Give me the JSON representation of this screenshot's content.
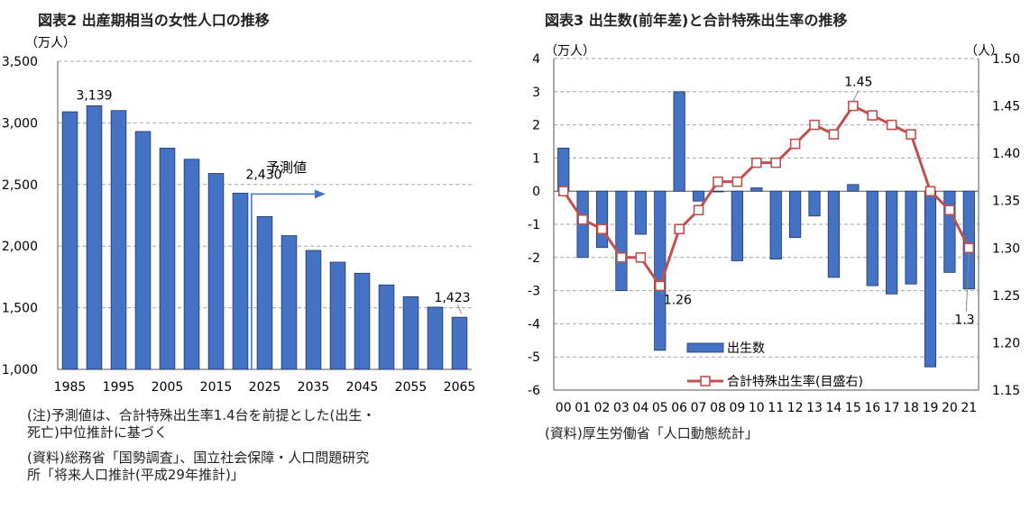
{
  "chart_data": [
    {
      "type": "bar",
      "title": "図表2 出産期相当の女性人口の推移",
      "ylabel": "（万人）",
      "ylim": [
        1000,
        3500
      ],
      "yticks": [
        "1,000",
        "1,500",
        "2,000",
        "2,500",
        "3,000",
        "3,500"
      ],
      "x_tick_labels": [
        "1985",
        "1995",
        "2005",
        "2015",
        "2025",
        "2035",
        "2045",
        "2055",
        "2065"
      ],
      "categories": [
        "1985",
        "1990",
        "1995",
        "2000",
        "2005",
        "2010",
        "2015",
        "2020",
        "2025",
        "2030",
        "2035",
        "2040",
        "2045",
        "2050",
        "2055",
        "2060",
        "2065"
      ],
      "values": [
        3090,
        3139,
        3100,
        2930,
        2795,
        2705,
        2590,
        2430,
        2240,
        2085,
        1965,
        1870,
        1780,
        1685,
        1590,
        1505,
        1423
      ],
      "data_labels": [
        {
          "index": 1,
          "text": "3,139"
        },
        {
          "index": 7,
          "text": "2,430"
        },
        {
          "index": 16,
          "text": "1,423"
        }
      ],
      "annotation": "予測値",
      "grid": true,
      "notes": [
        "(注)予測値は、合計特殊出生率1.4台を前提とした(出生・",
        "死亡)中位推計に基づく",
        "(資料)総務省「国勢調査」、国立社会保障・人口問題研究",
        "所「将来人口推計(平成29年推計)」"
      ]
    },
    {
      "type": "bar+line",
      "title": "図表3 出生数(前年差)と合計特殊出生率の推移",
      "ylabel_left": "（万人）",
      "ylabel_right": "（人）",
      "ylim_left": [
        -6,
        4
      ],
      "yticks_left": [
        "4",
        "3",
        "2",
        "1",
        "0",
        "-1",
        "-2",
        "-3",
        "-4",
        "-5",
        "-6"
      ],
      "ylim_right": [
        1.15,
        1.5
      ],
      "yticks_right": [
        "1.50",
        "1.45",
        "1.40",
        "1.35",
        "1.30",
        "1.25",
        "1.20",
        "1.15"
      ],
      "categories": [
        "00",
        "01",
        "02",
        "03",
        "04",
        "05",
        "06",
        "07",
        "08",
        "09",
        "10",
        "11",
        "12",
        "13",
        "14",
        "15",
        "16",
        "17",
        "18",
        "19",
        "20",
        "21"
      ],
      "series": [
        {
          "name": "出生数",
          "axis": "left",
          "values": [
            1.3,
            -2.0,
            -1.7,
            -3.0,
            -1.3,
            -4.8,
            3.0,
            -0.3,
            0.0,
            -2.1,
            0.1,
            -2.05,
            -1.4,
            -0.75,
            -2.6,
            0.2,
            -2.85,
            -3.1,
            -2.8,
            -5.3,
            -2.45,
            -2.95
          ]
        },
        {
          "name": "合計特殊出生率(目盛右)",
          "axis": "right",
          "values": [
            1.36,
            1.33,
            1.32,
            1.29,
            1.29,
            1.26,
            1.32,
            1.34,
            1.37,
            1.37,
            1.39,
            1.39,
            1.41,
            1.43,
            1.42,
            1.45,
            1.44,
            1.43,
            1.42,
            1.36,
            1.34,
            1.3
          ]
        }
      ],
      "data_labels": [
        {
          "index": 5,
          "text": "1.26"
        },
        {
          "index": 15,
          "text": "1.45"
        },
        {
          "index": 21,
          "text": "1.3"
        }
      ],
      "legend": [
        "出生数",
        "合計特殊出生率(目盛右)"
      ],
      "grid": true,
      "notes": [
        "(資料)厚生労働省「人口動態統計」"
      ]
    }
  ],
  "colors": {
    "bar": "#4472c4",
    "bar_edge": "#1f3864",
    "line": "#c0504d",
    "grid": "#a6a6a6",
    "arrow": "#4472c4"
  }
}
